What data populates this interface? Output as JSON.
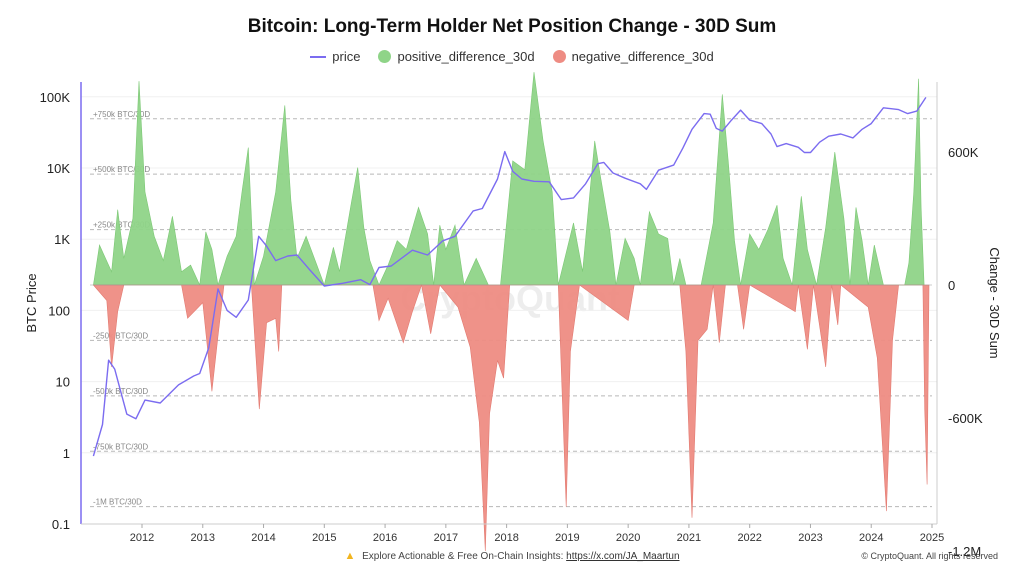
{
  "chart_data": {
    "type": "area",
    "title": "Bitcoin: Long-Term Holder Net Position Change - 30D Sum",
    "ylabel_left": "BTC Price",
    "ylabel_right": "Change - 30D Sum",
    "left_axis": {
      "scale": "log",
      "ylim": [
        0.1,
        200000
      ],
      "ticks": [
        "0.1",
        "1",
        "10",
        "100",
        "1K",
        "10K",
        "100K"
      ],
      "tick_values": [
        0.1,
        1,
        10,
        100,
        1000,
        10000,
        100000
      ]
    },
    "right_axis": {
      "ylim": [
        -1300000,
        1000000
      ],
      "ticks": [
        "-1.2M",
        "-600K",
        "0",
        "600K"
      ],
      "tick_values": [
        -1200000,
        -600000,
        0,
        600000
      ]
    },
    "x_axis": {
      "xlim": [
        2011.0,
        2025.0
      ],
      "ticks": [
        "2012",
        "2013",
        "2014",
        "2015",
        "2016",
        "2017",
        "2018",
        "2019",
        "2020",
        "2021",
        "2022",
        "2023",
        "2024",
        "2025"
      ],
      "tick_values": [
        2012,
        2013,
        2014,
        2015,
        2016,
        2017,
        2018,
        2019,
        2020,
        2021,
        2022,
        2023,
        2024,
        2025
      ]
    },
    "reference_lines": [
      {
        "label": "+750k BTC/30D",
        "value": 750000
      },
      {
        "label": "+500k BTC/30D",
        "value": 500000
      },
      {
        "label": "+250k BTC/30D",
        "value": 250000
      },
      {
        "label": "-250k BTC/30D",
        "value": -250000
      },
      {
        "label": "-500k BTC/30D",
        "value": -500000
      },
      {
        "label": "-750k BTC/30D",
        "value": -750000
      },
      {
        "label": "-1M BTC/30D",
        "value": -1000000
      }
    ],
    "legend_position": "top-center",
    "series": [
      {
        "name": "price",
        "color": "#7b6cf0"
      },
      {
        "name": "positive_difference_30d",
        "color": "#8fd488"
      },
      {
        "name": "negative_difference_30d",
        "color": "#ee8c83"
      }
    ],
    "price_points": [
      [
        2011.2,
        0.9
      ],
      [
        2011.35,
        2.5
      ],
      [
        2011.45,
        20
      ],
      [
        2011.55,
        15
      ],
      [
        2011.75,
        3.5
      ],
      [
        2011.9,
        3
      ],
      [
        2012.05,
        5.5
      ],
      [
        2012.3,
        5
      ],
      [
        2012.6,
        9
      ],
      [
        2012.85,
        12
      ],
      [
        2012.95,
        13
      ],
      [
        2013.1,
        30
      ],
      [
        2013.25,
        200
      ],
      [
        2013.4,
        100
      ],
      [
        2013.55,
        80
      ],
      [
        2013.75,
        140
      ],
      [
        2013.92,
        1100
      ],
      [
        2014.05,
        800
      ],
      [
        2014.2,
        500
      ],
      [
        2014.4,
        580
      ],
      [
        2014.55,
        600
      ],
      [
        2014.75,
        380
      ],
      [
        2015.0,
        220
      ],
      [
        2015.3,
        240
      ],
      [
        2015.6,
        270
      ],
      [
        2015.75,
        230
      ],
      [
        2015.9,
        400
      ],
      [
        2016.1,
        420
      ],
      [
        2016.45,
        700
      ],
      [
        2016.7,
        600
      ],
      [
        2016.95,
        950
      ],
      [
        2017.15,
        1100
      ],
      [
        2017.45,
        2500
      ],
      [
        2017.6,
        2700
      ],
      [
        2017.85,
        7000
      ],
      [
        2017.97,
        17000
      ],
      [
        2018.1,
        9000
      ],
      [
        2018.25,
        7000
      ],
      [
        2018.45,
        6500
      ],
      [
        2018.7,
        6400
      ],
      [
        2018.9,
        3600
      ],
      [
        2019.1,
        3800
      ],
      [
        2019.3,
        6000
      ],
      [
        2019.5,
        11500
      ],
      [
        2019.6,
        12000
      ],
      [
        2019.75,
        8500
      ],
      [
        2019.95,
        7200
      ],
      [
        2020.2,
        6000
      ],
      [
        2020.3,
        5000
      ],
      [
        2020.5,
        9300
      ],
      [
        2020.75,
        11000
      ],
      [
        2020.9,
        19000
      ],
      [
        2021.05,
        35000
      ],
      [
        2021.25,
        58000
      ],
      [
        2021.35,
        57000
      ],
      [
        2021.45,
        36000
      ],
      [
        2021.55,
        33000
      ],
      [
        2021.7,
        47000
      ],
      [
        2021.85,
        65000
      ],
      [
        2022.0,
        47000
      ],
      [
        2022.2,
        42000
      ],
      [
        2022.35,
        30000
      ],
      [
        2022.45,
        20000
      ],
      [
        2022.6,
        22000
      ],
      [
        2022.8,
        19500
      ],
      [
        2022.9,
        16500
      ],
      [
        2023.0,
        16500
      ],
      [
        2023.15,
        23000
      ],
      [
        2023.3,
        28000
      ],
      [
        2023.5,
        30000
      ],
      [
        2023.7,
        26500
      ],
      [
        2023.85,
        35000
      ],
      [
        2024.0,
        42000
      ],
      [
        2024.2,
        70000
      ],
      [
        2024.45,
        66000
      ],
      [
        2024.6,
        58000
      ],
      [
        2024.75,
        63000
      ],
      [
        2024.9,
        98000
      ]
    ],
    "positive_difference_30d": [
      [
        2011.2,
        0
      ],
      [
        2011.3,
        180000
      ],
      [
        2011.4,
        120000
      ],
      [
        2011.5,
        60000
      ],
      [
        2011.6,
        340000
      ],
      [
        2011.7,
        120000
      ],
      [
        2011.85,
        300000
      ],
      [
        2011.95,
        920000
      ],
      [
        2012.05,
        420000
      ],
      [
        2012.2,
        220000
      ],
      [
        2012.35,
        110000
      ],
      [
        2012.5,
        310000
      ],
      [
        2012.65,
        60000
      ],
      [
        2012.8,
        90000
      ],
      [
        2012.95,
        0
      ],
      [
        2013.05,
        240000
      ],
      [
        2013.15,
        160000
      ],
      [
        2013.25,
        0
      ],
      [
        2013.4,
        130000
      ],
      [
        2013.55,
        220000
      ],
      [
        2013.65,
        430000
      ],
      [
        2013.75,
        620000
      ],
      [
        2013.85,
        0
      ],
      [
        2014.0,
        130000
      ],
      [
        2014.2,
        420000
      ],
      [
        2014.35,
        810000
      ],
      [
        2014.45,
        380000
      ],
      [
        2014.55,
        120000
      ],
      [
        2014.7,
        220000
      ],
      [
        2014.85,
        110000
      ],
      [
        2015.0,
        0
      ],
      [
        2015.15,
        170000
      ],
      [
        2015.25,
        60000
      ],
      [
        2015.45,
        380000
      ],
      [
        2015.55,
        530000
      ],
      [
        2015.65,
        260000
      ],
      [
        2015.75,
        110000
      ],
      [
        2015.9,
        0
      ],
      [
        2016.05,
        90000
      ],
      [
        2016.2,
        200000
      ],
      [
        2016.35,
        160000
      ],
      [
        2016.55,
        350000
      ],
      [
        2016.7,
        230000
      ],
      [
        2016.8,
        0
      ],
      [
        2016.9,
        270000
      ],
      [
        2017.0,
        160000
      ],
      [
        2017.15,
        270000
      ],
      [
        2017.3,
        0
      ],
      [
        2017.5,
        120000
      ],
      [
        2017.7,
        0
      ],
      [
        2017.9,
        0
      ],
      [
        2018.1,
        560000
      ],
      [
        2018.3,
        520000
      ],
      [
        2018.45,
        960000
      ],
      [
        2018.6,
        650000
      ],
      [
        2018.75,
        420000
      ],
      [
        2018.85,
        0
      ],
      [
        2019.1,
        280000
      ],
      [
        2019.25,
        60000
      ],
      [
        2019.45,
        650000
      ],
      [
        2019.55,
        480000
      ],
      [
        2019.7,
        240000
      ],
      [
        2019.8,
        0
      ],
      [
        2019.95,
        210000
      ],
      [
        2020.1,
        120000
      ],
      [
        2020.2,
        0
      ],
      [
        2020.35,
        330000
      ],
      [
        2020.5,
        230000
      ],
      [
        2020.65,
        210000
      ],
      [
        2020.75,
        0
      ],
      [
        2020.85,
        120000
      ],
      [
        2020.95,
        0
      ],
      [
        2021.2,
        0
      ],
      [
        2021.4,
        280000
      ],
      [
        2021.55,
        860000
      ],
      [
        2021.65,
        550000
      ],
      [
        2021.75,
        200000
      ],
      [
        2021.85,
        0
      ],
      [
        2022.0,
        230000
      ],
      [
        2022.15,
        160000
      ],
      [
        2022.3,
        250000
      ],
      [
        2022.45,
        360000
      ],
      [
        2022.55,
        120000
      ],
      [
        2022.7,
        0
      ],
      [
        2022.85,
        400000
      ],
      [
        2022.95,
        160000
      ],
      [
        2023.1,
        0
      ],
      [
        2023.25,
        260000
      ],
      [
        2023.4,
        600000
      ],
      [
        2023.55,
        300000
      ],
      [
        2023.65,
        0
      ],
      [
        2023.75,
        350000
      ],
      [
        2023.85,
        200000
      ],
      [
        2023.95,
        0
      ],
      [
        2024.05,
        180000
      ],
      [
        2024.2,
        0
      ],
      [
        2024.4,
        0
      ],
      [
        2024.55,
        0
      ],
      [
        2024.62,
        100000
      ],
      [
        2024.7,
        420000
      ],
      [
        2024.78,
        930000
      ],
      [
        2024.82,
        350000
      ],
      [
        2024.87,
        0
      ]
    ],
    "negative_difference_30d": [
      [
        2011.2,
        0
      ],
      [
        2011.42,
        -70000
      ],
      [
        2011.5,
        -370000
      ],
      [
        2011.6,
        -120000
      ],
      [
        2011.7,
        0
      ],
      [
        2012.65,
        0
      ],
      [
        2012.75,
        -150000
      ],
      [
        2013.0,
        -80000
      ],
      [
        2013.15,
        -480000
      ],
      [
        2013.25,
        -230000
      ],
      [
        2013.35,
        0
      ],
      [
        2013.8,
        0
      ],
      [
        2013.93,
        -560000
      ],
      [
        2014.05,
        -170000
      ],
      [
        2014.2,
        -150000
      ],
      [
        2014.25,
        -300000
      ],
      [
        2014.3,
        0
      ],
      [
        2015.8,
        0
      ],
      [
        2015.9,
        -160000
      ],
      [
        2016.05,
        -60000
      ],
      [
        2016.3,
        -260000
      ],
      [
        2016.45,
        -120000
      ],
      [
        2016.6,
        0
      ],
      [
        2016.75,
        -220000
      ],
      [
        2016.9,
        0
      ],
      [
        2017.2,
        -100000
      ],
      [
        2017.4,
        -280000
      ],
      [
        2017.55,
        -620000
      ],
      [
        2017.65,
        -1200000
      ],
      [
        2017.72,
        -580000
      ],
      [
        2017.85,
        -340000
      ],
      [
        2017.95,
        -420000
      ],
      [
        2018.05,
        0
      ],
      [
        2018.85,
        0
      ],
      [
        2018.98,
        -1000000
      ],
      [
        2019.05,
        -300000
      ],
      [
        2019.2,
        0
      ],
      [
        2020.0,
        -160000
      ],
      [
        2020.1,
        0
      ],
      [
        2020.85,
        0
      ],
      [
        2020.95,
        -300000
      ],
      [
        2021.05,
        -1050000
      ],
      [
        2021.15,
        -250000
      ],
      [
        2021.3,
        -200000
      ],
      [
        2021.4,
        0
      ],
      [
        2021.5,
        -260000
      ],
      [
        2021.6,
        0
      ],
      [
        2021.8,
        0
      ],
      [
        2021.9,
        -200000
      ],
      [
        2022.0,
        0
      ],
      [
        2022.75,
        -120000
      ],
      [
        2022.8,
        0
      ],
      [
        2022.95,
        -290000
      ],
      [
        2023.05,
        0
      ],
      [
        2023.25,
        -370000
      ],
      [
        2023.35,
        0
      ],
      [
        2023.45,
        -180000
      ],
      [
        2023.5,
        0
      ],
      [
        2023.95,
        -100000
      ],
      [
        2024.1,
        -330000
      ],
      [
        2024.25,
        -1020000
      ],
      [
        2024.35,
        -250000
      ],
      [
        2024.45,
        0
      ],
      [
        2024.85,
        0
      ],
      [
        2024.88,
        -560000
      ],
      [
        2024.92,
        -900000
      ],
      [
        2024.95,
        0
      ]
    ]
  },
  "legend": {
    "price": "price",
    "positive": "positive_difference_30d",
    "negative": "negative_difference_30d"
  },
  "watermark": "CryptoQuant",
  "footer": {
    "text": "Explore Actionable & Free On-Chain Insights:",
    "link": "https://x.com/JA_Maartun",
    "copyright": "© CryptoQuant. All rights reserved"
  }
}
